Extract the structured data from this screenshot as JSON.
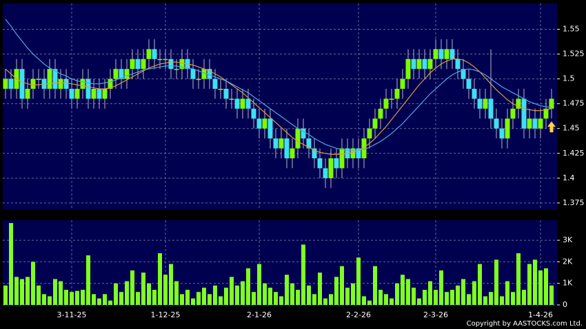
{
  "chart_data": [
    {
      "type": "candlestick",
      "up_color": "#7cfc00",
      "down_color": "#3fe0f0",
      "open": [
        1.49,
        1.5,
        1.49,
        1.51,
        1.48,
        1.49,
        1.5,
        1.5,
        1.49,
        1.51,
        1.49,
        1.5,
        1.49,
        1.48,
        1.49,
        1.5,
        1.48,
        1.49,
        1.48,
        1.49,
        1.5,
        1.51,
        1.5,
        1.51,
        1.52,
        1.51,
        1.52,
        1.53,
        1.52,
        1.52,
        1.52,
        1.51,
        1.51,
        1.52,
        1.51,
        1.5,
        1.5,
        1.51,
        1.5,
        1.49,
        1.49,
        1.48,
        1.48,
        1.47,
        1.48,
        1.47,
        1.46,
        1.45,
        1.46,
        1.44,
        1.43,
        1.44,
        1.42,
        1.43,
        1.45,
        1.44,
        1.43,
        1.42,
        1.41,
        1.4,
        1.42,
        1.41,
        1.43,
        1.42,
        1.43,
        1.42,
        1.44,
        1.45,
        1.46,
        1.47,
        1.48,
        1.48,
        1.49,
        1.5,
        1.52,
        1.51,
        1.52,
        1.51,
        1.52,
        1.53,
        1.52,
        1.53,
        1.52,
        1.51,
        1.5,
        1.49,
        1.48,
        1.47,
        1.48,
        1.46,
        1.45,
        1.44,
        1.46,
        1.47,
        1.48,
        1.45,
        1.46,
        1.45,
        1.46,
        1.47
      ],
      "high": [
        1.51,
        1.51,
        1.52,
        1.52,
        1.5,
        1.51,
        1.51,
        1.51,
        1.52,
        1.52,
        1.51,
        1.51,
        1.5,
        1.5,
        1.51,
        1.51,
        1.5,
        1.5,
        1.5,
        1.51,
        1.52,
        1.52,
        1.52,
        1.53,
        1.53,
        1.53,
        1.54,
        1.54,
        1.53,
        1.53,
        1.53,
        1.52,
        1.53,
        1.53,
        1.52,
        1.51,
        1.52,
        1.52,
        1.51,
        1.5,
        1.5,
        1.49,
        1.49,
        1.49,
        1.49,
        1.48,
        1.47,
        1.47,
        1.47,
        1.45,
        1.45,
        1.45,
        1.44,
        1.46,
        1.46,
        1.45,
        1.44,
        1.43,
        1.42,
        1.43,
        1.43,
        1.44,
        1.44,
        1.44,
        1.44,
        1.45,
        1.46,
        1.47,
        1.48,
        1.49,
        1.49,
        1.5,
        1.51,
        1.53,
        1.53,
        1.53,
        1.53,
        1.53,
        1.54,
        1.54,
        1.54,
        1.54,
        1.53,
        1.52,
        1.51,
        1.5,
        1.49,
        1.49,
        1.53,
        1.47,
        1.46,
        1.47,
        1.48,
        1.49,
        1.49,
        1.47,
        1.47,
        1.47,
        1.48,
        1.49
      ],
      "low": [
        1.48,
        1.48,
        1.48,
        1.47,
        1.47,
        1.48,
        1.49,
        1.48,
        1.48,
        1.48,
        1.48,
        1.48,
        1.47,
        1.47,
        1.48,
        1.47,
        1.47,
        1.47,
        1.47,
        1.48,
        1.49,
        1.49,
        1.49,
        1.5,
        1.5,
        1.5,
        1.51,
        1.51,
        1.51,
        1.51,
        1.5,
        1.5,
        1.5,
        1.5,
        1.49,
        1.49,
        1.49,
        1.49,
        1.48,
        1.48,
        1.47,
        1.47,
        1.46,
        1.46,
        1.46,
        1.45,
        1.44,
        1.44,
        1.43,
        1.42,
        1.42,
        1.41,
        1.41,
        1.42,
        1.43,
        1.42,
        1.41,
        1.4,
        1.39,
        1.39,
        1.4,
        1.4,
        1.41,
        1.41,
        1.41,
        1.41,
        1.43,
        1.44,
        1.45,
        1.46,
        1.47,
        1.47,
        1.48,
        1.49,
        1.5,
        1.5,
        1.5,
        1.5,
        1.51,
        1.51,
        1.51,
        1.51,
        1.5,
        1.49,
        1.48,
        1.47,
        1.46,
        1.46,
        1.45,
        1.44,
        1.43,
        1.43,
        1.45,
        1.46,
        1.44,
        1.44,
        1.44,
        1.44,
        1.45,
        1.46
      ],
      "close": [
        1.5,
        1.49,
        1.51,
        1.48,
        1.49,
        1.5,
        1.5,
        1.49,
        1.51,
        1.49,
        1.5,
        1.49,
        1.48,
        1.49,
        1.5,
        1.48,
        1.49,
        1.48,
        1.49,
        1.5,
        1.51,
        1.5,
        1.51,
        1.52,
        1.51,
        1.52,
        1.53,
        1.52,
        1.52,
        1.52,
        1.51,
        1.51,
        1.52,
        1.51,
        1.5,
        1.5,
        1.51,
        1.5,
        1.49,
        1.49,
        1.48,
        1.48,
        1.47,
        1.48,
        1.47,
        1.46,
        1.45,
        1.46,
        1.44,
        1.43,
        1.44,
        1.42,
        1.43,
        1.45,
        1.44,
        1.43,
        1.42,
        1.41,
        1.4,
        1.42,
        1.41,
        1.43,
        1.42,
        1.43,
        1.42,
        1.44,
        1.45,
        1.46,
        1.47,
        1.48,
        1.48,
        1.49,
        1.5,
        1.52,
        1.51,
        1.52,
        1.51,
        1.52,
        1.53,
        1.52,
        1.53,
        1.52,
        1.51,
        1.5,
        1.49,
        1.48,
        1.47,
        1.48,
        1.46,
        1.45,
        1.44,
        1.46,
        1.47,
        1.48,
        1.45,
        1.46,
        1.45,
        1.46,
        1.47,
        1.48
      ],
      "series": [
        {
          "color": "#e39a3c",
          "values": [
            1.51,
            1.505,
            1.5,
            1.497,
            1.495,
            1.494,
            1.494,
            1.495,
            1.495,
            1.496,
            1.496,
            1.496,
            1.495,
            1.494,
            1.493,
            1.492,
            1.491,
            1.49,
            1.49,
            1.491,
            1.493,
            1.496,
            1.499,
            1.502,
            1.505,
            1.508,
            1.511,
            1.513,
            1.515,
            1.516,
            1.517,
            1.517,
            1.516,
            1.515,
            1.514,
            1.512,
            1.51,
            1.508,
            1.505,
            1.502,
            1.498,
            1.494,
            1.49,
            1.486,
            1.481,
            1.476,
            1.471,
            1.466,
            1.461,
            1.456,
            1.451,
            1.446,
            1.441,
            1.437,
            1.434,
            1.431,
            1.428,
            1.426,
            1.425,
            1.424,
            1.424,
            1.424,
            1.425,
            1.426,
            1.428,
            1.431,
            1.435,
            1.44,
            1.446,
            1.452,
            1.459,
            1.466,
            1.473,
            1.48,
            1.487,
            1.494,
            1.5,
            1.506,
            1.511,
            1.515,
            1.518,
            1.52,
            1.52,
            1.519,
            1.516,
            1.512,
            1.507,
            1.501,
            1.495,
            1.489,
            1.484,
            1.479,
            1.475,
            1.472,
            1.47,
            1.469,
            1.468,
            1.468,
            1.469,
            1.47
          ]
        },
        {
          "color": "#4fa8e6",
          "values": [
            1.56,
            1.553,
            1.545,
            1.538,
            1.531,
            1.525,
            1.52,
            1.515,
            1.511,
            1.508,
            1.505,
            1.503,
            1.5,
            1.498,
            1.497,
            1.496,
            1.495,
            1.495,
            1.496,
            1.497,
            1.499,
            1.501,
            1.503,
            1.505,
            1.507,
            1.509,
            1.51,
            1.511,
            1.512,
            1.513,
            1.513,
            1.513,
            1.512,
            1.511,
            1.51,
            1.508,
            1.506,
            1.504,
            1.502,
            1.5,
            1.498,
            1.495,
            1.492,
            1.489,
            1.486,
            1.482,
            1.478,
            1.474,
            1.47,
            1.466,
            1.462,
            1.458,
            1.454,
            1.45,
            1.447,
            1.444,
            1.44,
            1.437,
            1.434,
            1.432,
            1.43,
            1.429,
            1.428,
            1.428,
            1.428,
            1.429,
            1.431,
            1.434,
            1.437,
            1.441,
            1.445,
            1.45,
            1.455,
            1.461,
            1.467,
            1.473,
            1.479,
            1.485,
            1.49,
            1.495,
            1.5,
            1.504,
            1.507,
            1.509,
            1.51,
            1.509,
            1.507,
            1.504,
            1.5,
            1.496,
            1.492,
            1.489,
            1.486,
            1.483,
            1.48,
            1.477,
            1.475,
            1.473,
            1.472,
            1.471
          ]
        }
      ],
      "ylim": [
        1.368,
        1.576
      ],
      "yticks": [
        1.375,
        1.4,
        1.425,
        1.45,
        1.475,
        1.5,
        1.525,
        1.55
      ],
      "grid": true
    },
    {
      "type": "bar",
      "color": "#80ff1e",
      "categories": [
        null,
        null,
        null,
        null,
        null,
        null,
        null,
        null,
        null,
        null,
        null,
        null,
        "3-11-25",
        null,
        null,
        null,
        null,
        null,
        null,
        null,
        null,
        null,
        null,
        null,
        null,
        null,
        null,
        null,
        null,
        "1-12-25",
        null,
        null,
        null,
        null,
        null,
        null,
        null,
        null,
        null,
        null,
        null,
        null,
        null,
        null,
        null,
        null,
        "2-1-26",
        null,
        null,
        null,
        null,
        null,
        null,
        null,
        null,
        null,
        null,
        null,
        null,
        null,
        null,
        null,
        null,
        null,
        "2-2-26",
        null,
        null,
        null,
        null,
        null,
        null,
        null,
        null,
        null,
        null,
        null,
        null,
        null,
        "2-3-26",
        null,
        null,
        null,
        null,
        null,
        null,
        null,
        null,
        null,
        null,
        null,
        null,
        null,
        null,
        null,
        null,
        null,
        null,
        "1-4-26",
        null,
        null
      ],
      "values": [
        900,
        3800,
        1300,
        1200,
        1300,
        2000,
        900,
        500,
        400,
        1200,
        1100,
        700,
        600,
        650,
        700,
        2300,
        500,
        300,
        500,
        200,
        1000,
        600,
        1100,
        1600,
        600,
        1500,
        1000,
        700,
        2400,
        1400,
        1900,
        1100,
        500,
        700,
        300,
        600,
        800,
        500,
        900,
        400,
        800,
        1300,
        900,
        1100,
        1700,
        600,
        1900,
        1000,
        800,
        600,
        400,
        1400,
        1000,
        700,
        2800,
        900,
        500,
        1500,
        300,
        500,
        1300,
        1800,
        800,
        1000,
        2200,
        400,
        200,
        1800,
        700,
        500,
        300,
        1000,
        1400,
        1200,
        800,
        300,
        700,
        1100,
        700,
        1600,
        600,
        700,
        900,
        1200,
        500,
        1100,
        1900,
        400,
        600,
        2100,
        400,
        1100,
        600,
        2400,
        700,
        1900,
        2100,
        1600,
        1700,
        900
      ],
      "ylim": [
        0,
        3930
      ],
      "yticks": [
        0,
        {
          "value": 1000,
          "label": "1K"
        },
        {
          "value": 2000,
          "label": "2K"
        },
        {
          "value": 3000,
          "label": "3K"
        }
      ],
      "grid": true
    }
  ],
  "footer": "Copyright by AASTOCKS.com Ltd."
}
